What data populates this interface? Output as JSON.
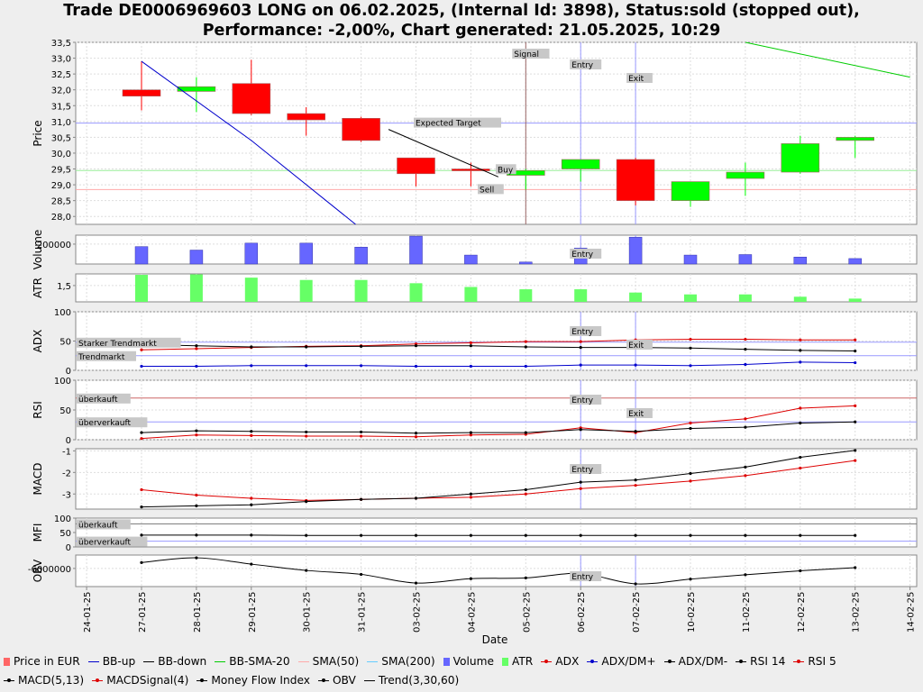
{
  "title": {
    "line1": "Trade DE0006969603 LONG on 06.02.2025, (Internal Id: 3898), Status:sold (stopped out),",
    "line2": "Performance: -2,00%, Chart generated: 21.05.2025, 10:29"
  },
  "colors": {
    "up": "#00ff00",
    "down": "#ff0000",
    "bb_up": "#0000cc",
    "bb_down": "#000000",
    "bb_sma": "#00cc00",
    "volume": "#6666ff",
    "atr": "#66ff66",
    "adx": "#dd0000",
    "dm_plus": "#0000cc",
    "dm_minus": "#000000",
    "rsi14": "#000000",
    "rsi5": "#dd0000",
    "macd": "#000000",
    "macd_signal": "#dd0000",
    "mfi": "#000000",
    "obv": "#000000",
    "expected_target": "#9999ff",
    "buy_line": "#99ee99",
    "sell_line": "#ffaaaa"
  },
  "chart_data": [
    {
      "type": "candlestick",
      "ylabel": "Price",
      "ylim": [
        27.75,
        33.5
      ],
      "yticks": [
        "28,0",
        "28,5",
        "29,0",
        "29,5",
        "30,0",
        "30,5",
        "31,0",
        "31,5",
        "32,0",
        "32,5",
        "33,0",
        "33,5"
      ],
      "categories": [
        "27-01-25",
        "28-01-25",
        "29-01-25",
        "30-01-25",
        "31-01-25",
        "03-02-25",
        "04-02-25",
        "05-02-25",
        "06-02-25",
        "07-02-25",
        "10-02-25",
        "11-02-25",
        "12-02-25",
        "13-02-25"
      ],
      "open": [
        32.0,
        31.95,
        32.2,
        31.25,
        31.1,
        29.85,
        29.5,
        29.3,
        29.5,
        29.8,
        28.5,
        29.2,
        29.4,
        30.4
      ],
      "high": [
        32.9,
        32.4,
        32.95,
        31.45,
        31.15,
        29.85,
        29.7,
        29.5,
        29.8,
        29.85,
        29.1,
        29.7,
        30.55,
        30.55
      ],
      "low": [
        31.35,
        31.3,
        31.2,
        30.55,
        30.35,
        28.95,
        28.95,
        28.85,
        29.1,
        28.35,
        28.3,
        28.65,
        29.35,
        29.85
      ],
      "close": [
        31.8,
        32.1,
        31.25,
        31.05,
        30.4,
        29.35,
        29.45,
        29.45,
        29.8,
        28.5,
        29.1,
        29.4,
        30.3,
        30.5
      ],
      "bb_up": {
        "x": [
          0,
          2,
          3.9
        ],
        "y": [
          32.9,
          30.4,
          27.75
        ]
      },
      "trend": {
        "x": [
          4.5,
          6.5
        ],
        "y": [
          30.75,
          29.25
        ]
      },
      "bb_sma": {
        "x": [
          11,
          14
        ],
        "y": [
          33.5,
          32.4
        ]
      },
      "levels": {
        "expected_target": 30.95,
        "buy": 29.45,
        "sell": 28.85
      },
      "annotations": {
        "signal": "Signal",
        "entry": "Entry",
        "exit": "Exit",
        "expected_target": "Expected Target",
        "buy": "Buy",
        "sell": "Sell"
      },
      "markers": {
        "signal": 7,
        "entry": 8,
        "exit": 9
      }
    },
    {
      "type": "bar",
      "ylabel": "Volume",
      "ytick": "200000",
      "ylim": [
        0,
        290000
      ],
      "values": [
        175000,
        140000,
        210000,
        210000,
        170000,
        280000,
        90000,
        20000,
        160000,
        270000,
        90000,
        95000,
        70000,
        55000
      ]
    },
    {
      "type": "bar",
      "ylabel": "ATR",
      "ytick": "1,5",
      "ylim": [
        1.15,
        1.75
      ],
      "values": [
        1.73,
        1.74,
        1.67,
        1.62,
        1.62,
        1.55,
        1.47,
        1.42,
        1.42,
        1.35,
        1.31,
        1.31,
        1.26,
        1.22
      ]
    },
    {
      "type": "line",
      "ylabel": "ADX",
      "ylim": [
        0,
        100
      ],
      "yticks": [
        "0",
        "50",
        "100"
      ],
      "adx": [
        35,
        37,
        39,
        41,
        42,
        45,
        47,
        49,
        49,
        52,
        53,
        53,
        52,
        52
      ],
      "dm_plus": [
        7,
        7,
        8,
        8,
        8,
        7,
        7,
        7,
        9,
        9,
        8,
        10,
        14,
        13
      ],
      "dm_minus": [
        44,
        42,
        40,
        40,
        41,
        42,
        42,
        40,
        39,
        39,
        38,
        36,
        34,
        33
      ],
      "levels": {
        "strong": 48,
        "trend": 25
      },
      "labels": {
        "strong": "Starker Trendmarkt",
        "trend": "Trendmarkt"
      }
    },
    {
      "type": "line",
      "ylabel": "RSI",
      "ylim": [
        0,
        100
      ],
      "yticks": [
        "0",
        "50",
        "100"
      ],
      "rsi14": [
        12,
        15,
        14,
        13,
        13,
        11,
        12,
        12,
        17,
        14,
        19,
        21,
        28,
        30
      ],
      "rsi5": [
        2,
        8,
        7,
        6,
        6,
        5,
        8,
        9,
        20,
        12,
        28,
        35,
        53,
        57
      ],
      "levels": {
        "overbought": 70,
        "oversold": 30
      },
      "labels": {
        "overbought": "überkauft",
        "oversold": "überverkauft"
      }
    },
    {
      "type": "line",
      "ylabel": "MACD",
      "ylim": [
        -3.7,
        -0.9
      ],
      "yticks": [
        "-1",
        "-2",
        "-3"
      ],
      "macd": [
        -3.6,
        -3.55,
        -3.5,
        -3.35,
        -3.25,
        -3.2,
        -3.0,
        -2.8,
        -2.45,
        -2.35,
        -2.05,
        -1.75,
        -1.3,
        -0.98
      ],
      "signal": [
        -2.8,
        -3.05,
        -3.2,
        -3.3,
        -3.25,
        -3.2,
        -3.15,
        -3.0,
        -2.75,
        -2.6,
        -2.4,
        -2.15,
        -1.8,
        -1.45
      ]
    },
    {
      "type": "line",
      "ylabel": "MFI",
      "ylim": [
        0,
        100
      ],
      "yticks": [
        "0",
        "50",
        "100"
      ],
      "mfi": [
        41,
        41,
        41,
        40,
        40,
        40,
        40,
        40,
        40,
        40,
        40,
        40,
        40,
        40
      ],
      "levels": {
        "overbought": 80,
        "oversold": 20
      },
      "labels": {
        "overbought": "überkauft",
        "oversold": "überverkauft"
      }
    },
    {
      "type": "line",
      "ylabel": "OBV",
      "ylim": [
        -8300000,
        -4300000
      ],
      "yticks": [
        "-6000000"
      ],
      "obv": [
        -5250000,
        -4650000,
        -5450000,
        -6250000,
        -6750000,
        -7850000,
        -7300000,
        -7200000,
        -6650000,
        -7950000,
        -7350000,
        -6800000,
        -6300000,
        -5900000
      ]
    }
  ],
  "x_axis": {
    "label": "Date",
    "ticks": [
      "24-01-25",
      "27-01-25",
      "28-01-25",
      "29-01-25",
      "30-01-25",
      "31-01-25",
      "03-02-25",
      "04-02-25",
      "05-02-25",
      "06-02-25",
      "07-02-25",
      "10-02-25",
      "11-02-25",
      "12-02-25",
      "13-02-25",
      "14-02-25"
    ]
  },
  "legend": [
    {
      "label": "Price in EUR",
      "kind": "box",
      "color": "#ff6666"
    },
    {
      "label": "BB-up",
      "kind": "line",
      "color": "#0000cc"
    },
    {
      "label": "BB-down",
      "kind": "line",
      "color": "#000000"
    },
    {
      "label": "BB-SMA-20",
      "kind": "line",
      "color": "#00cc00"
    },
    {
      "label": "SMA(50)",
      "kind": "line",
      "color": "#ffaaaa"
    },
    {
      "label": "SMA(200)",
      "kind": "line",
      "color": "#66ccff"
    },
    {
      "label": "Volume",
      "kind": "box",
      "color": "#6666ff"
    },
    {
      "label": "ATR",
      "kind": "box",
      "color": "#66ff66"
    },
    {
      "label": "ADX",
      "kind": "dot",
      "color": "#dd0000"
    },
    {
      "label": "ADX/DM+",
      "kind": "dot",
      "color": "#0000cc"
    },
    {
      "label": "ADX/DM-",
      "kind": "dot",
      "color": "#000000"
    },
    {
      "label": "RSI 14",
      "kind": "dot",
      "color": "#000000"
    },
    {
      "label": "RSI 5",
      "kind": "dot",
      "color": "#dd0000"
    },
    {
      "label": "MACD(5,13)",
      "kind": "dot",
      "color": "#000000"
    },
    {
      "label": "MACDSignal(4)",
      "kind": "dot",
      "color": "#dd0000"
    },
    {
      "label": "Money Flow Index",
      "kind": "dot",
      "color": "#000000"
    },
    {
      "label": "OBV",
      "kind": "dot",
      "color": "#000000"
    },
    {
      "label": "Trend(3,30,60)",
      "kind": "line",
      "color": "#000000"
    }
  ]
}
